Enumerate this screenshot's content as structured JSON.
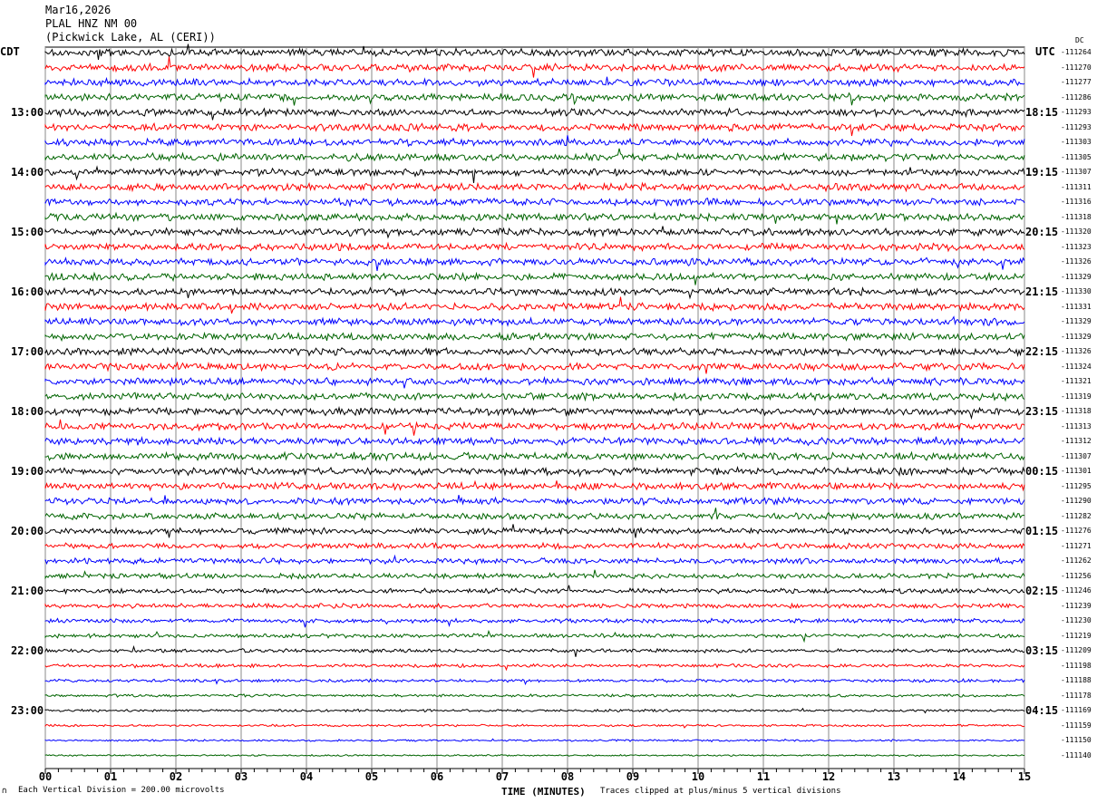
{
  "header": {
    "date": "Mar16,2026",
    "station": "PLAL HNZ NM 00",
    "location": "(Pickwick Lake, AL (CERI))"
  },
  "chart_data": {
    "type": "line",
    "title": "PLAL HNZ NM 00",
    "xlabel": "TIME (MINUTES)",
    "xlim": [
      0,
      15
    ],
    "x_ticks": [
      "00",
      "01",
      "02",
      "03",
      "04",
      "05",
      "06",
      "07",
      "08",
      "09",
      "10",
      "11",
      "12",
      "13",
      "14",
      "15"
    ],
    "left_axis_title": "CDT",
    "right_axis_title": "UTC",
    "dc_title": "DC",
    "left_hour_labels": [
      "13:00",
      "14:00",
      "15:00",
      "16:00",
      "17:00",
      "18:00",
      "19:00",
      "20:00",
      "21:00",
      "22:00",
      "23:00"
    ],
    "right_hour_labels": [
      "18:15",
      "19:15",
      "20:15",
      "21:15",
      "22:15",
      "23:15",
      "00:15",
      "01:15",
      "02:15",
      "03:15",
      "04:15"
    ],
    "trace_colors": [
      "#000000",
      "#ff0000",
      "#0000ff",
      "#006400"
    ],
    "trace_dc_offsets": [
      "-111264",
      "-111270",
      "-111277",
      "-111286",
      "-111293",
      "-111293",
      "-111303",
      "-111305",
      "-111307",
      "-111311",
      "-111316",
      "-111318",
      "-111320",
      "-111323",
      "-111326",
      "-111329",
      "-111330",
      "-111331",
      "-111329",
      "-111329",
      "-111326",
      "-111324",
      "-111321",
      "-111319",
      "-111318",
      "-111313",
      "-111312",
      "-111307",
      "-111301",
      "-111295",
      "-111290",
      "-111282",
      "-111276",
      "-111271",
      "-111262",
      "-111256",
      "-111246",
      "-111239",
      "-111230",
      "-111219",
      "-111209",
      "-111198",
      "-111188",
      "-111178",
      "-111169",
      "-111159",
      "-111150",
      "-111140"
    ],
    "grid": true
  },
  "footer": {
    "scale": "Each Vertical Division =  200.00 microvolts",
    "clip": "Traces clipped at plus/minus 5 vertical divisions",
    "corner_mark": "∩"
  }
}
